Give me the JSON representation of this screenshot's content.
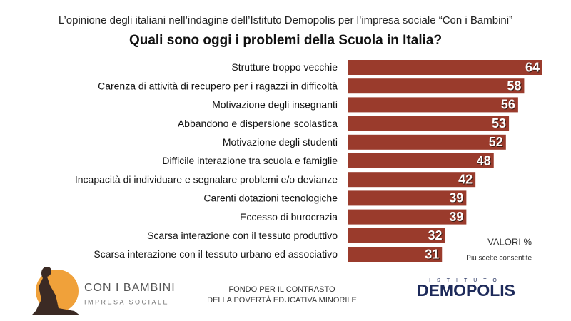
{
  "chart_data": {
    "type": "bar",
    "orientation": "horizontal",
    "subtitle": "L’opinione degli italiani nell’indagine dell’Istituto Demopolis per l’impresa sociale “Con i Bambini”",
    "title": "Quali sono oggi i problemi della Scuola in Italia?",
    "categories": [
      "Strutture troppo vecchie",
      "Carenza di attività di recupero per i ragazzi in difficoltà",
      "Motivazione degli insegnanti",
      "Abbandono e dispersione scolastica",
      "Motivazione degli studenti",
      "Difficile interazione tra scuola e famiglie",
      "Incapacità di individuare e segnalare problemi e/o devianze",
      "Carenti dotazioni tecnologiche",
      "Eccesso di burocrazia",
      "Scarsa interazione con il tessuto produttivo",
      "Scarsa interazione con il tessuto urbano ed associativo"
    ],
    "values": [
      64,
      58,
      56,
      53,
      52,
      48,
      42,
      39,
      39,
      32,
      31
    ],
    "color": "#9a3b2c",
    "unit_note": "VALORI %",
    "note": "Più scelte consentite"
  },
  "footer": {
    "left_logo": {
      "name": "CON I BAMBINI",
      "tagline": "IMPRESA SOCIALE"
    },
    "center": [
      "FONDO PER IL CONTRASTO",
      "DELLA POVERTÀ EDUCATIVA MINORILE"
    ],
    "right_logo": {
      "top": "ISTITUTO",
      "name": "DEMOPOLIS"
    }
  }
}
